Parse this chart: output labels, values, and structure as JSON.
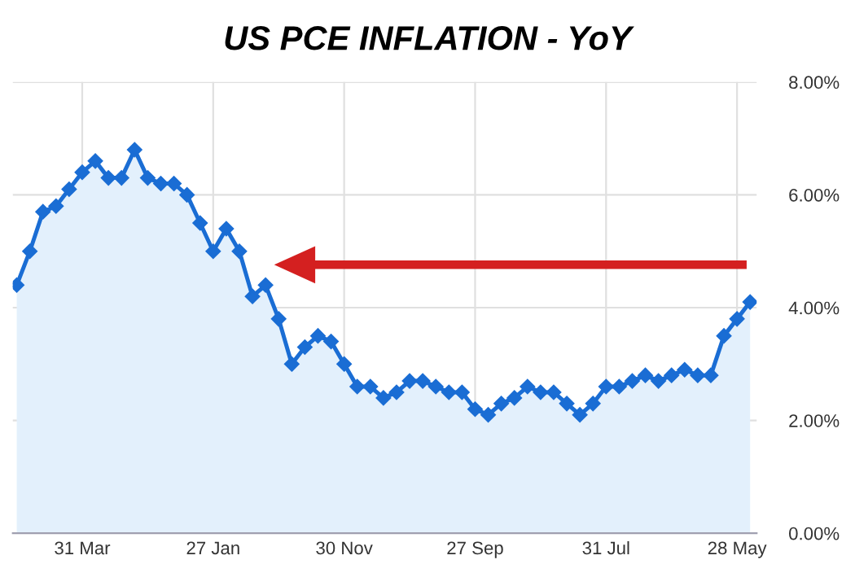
{
  "chart_data": {
    "type": "area",
    "title": "US PCE INFLATION - YoY",
    "categories": [
      null,
      null,
      null,
      null,
      null,
      "31 Mar",
      null,
      null,
      null,
      null,
      null,
      null,
      null,
      null,
      null,
      "27 Jan",
      null,
      null,
      null,
      null,
      null,
      null,
      null,
      null,
      null,
      "30 Nov",
      null,
      null,
      null,
      null,
      null,
      null,
      null,
      null,
      null,
      "27 Sep",
      null,
      null,
      null,
      null,
      null,
      null,
      null,
      null,
      null,
      "31 Jul",
      null,
      null,
      null,
      null,
      null,
      null,
      null,
      null,
      null,
      "28 May",
      null
    ],
    "series": [
      {
        "color": "#1a6dd4",
        "values": [
          4.4,
          5.0,
          5.7,
          5.8,
          6.1,
          6.4,
          6.6,
          6.3,
          6.3,
          6.8,
          6.3,
          6.2,
          6.2,
          6.0,
          5.5,
          5.0,
          5.4,
          5.0,
          4.2,
          4.4,
          3.8,
          3.0,
          3.3,
          3.5,
          3.4,
          3.0,
          2.6,
          2.6,
          2.4,
          2.5,
          2.7,
          2.7,
          2.6,
          2.5,
          2.5,
          2.2,
          2.1,
          2.3,
          2.4,
          2.6,
          2.5,
          2.5,
          2.3,
          2.1,
          2.3,
          2.6,
          2.6,
          2.7,
          2.8,
          2.7,
          2.8,
          2.9,
          2.8,
          2.8,
          3.5,
          3.8,
          4.1
        ]
      }
    ],
    "ylim": [
      0,
      8
    ],
    "yticks": [
      {
        "value": 0,
        "label": "0.00%"
      },
      {
        "value": 2,
        "label": "2.00%"
      },
      {
        "value": 4,
        "label": "4.00%"
      },
      {
        "value": 6,
        "label": "6.00%"
      },
      {
        "value": 8,
        "label": "8.00%"
      }
    ],
    "grid": true,
    "marker": "diamond",
    "line_style": "solid"
  }
}
